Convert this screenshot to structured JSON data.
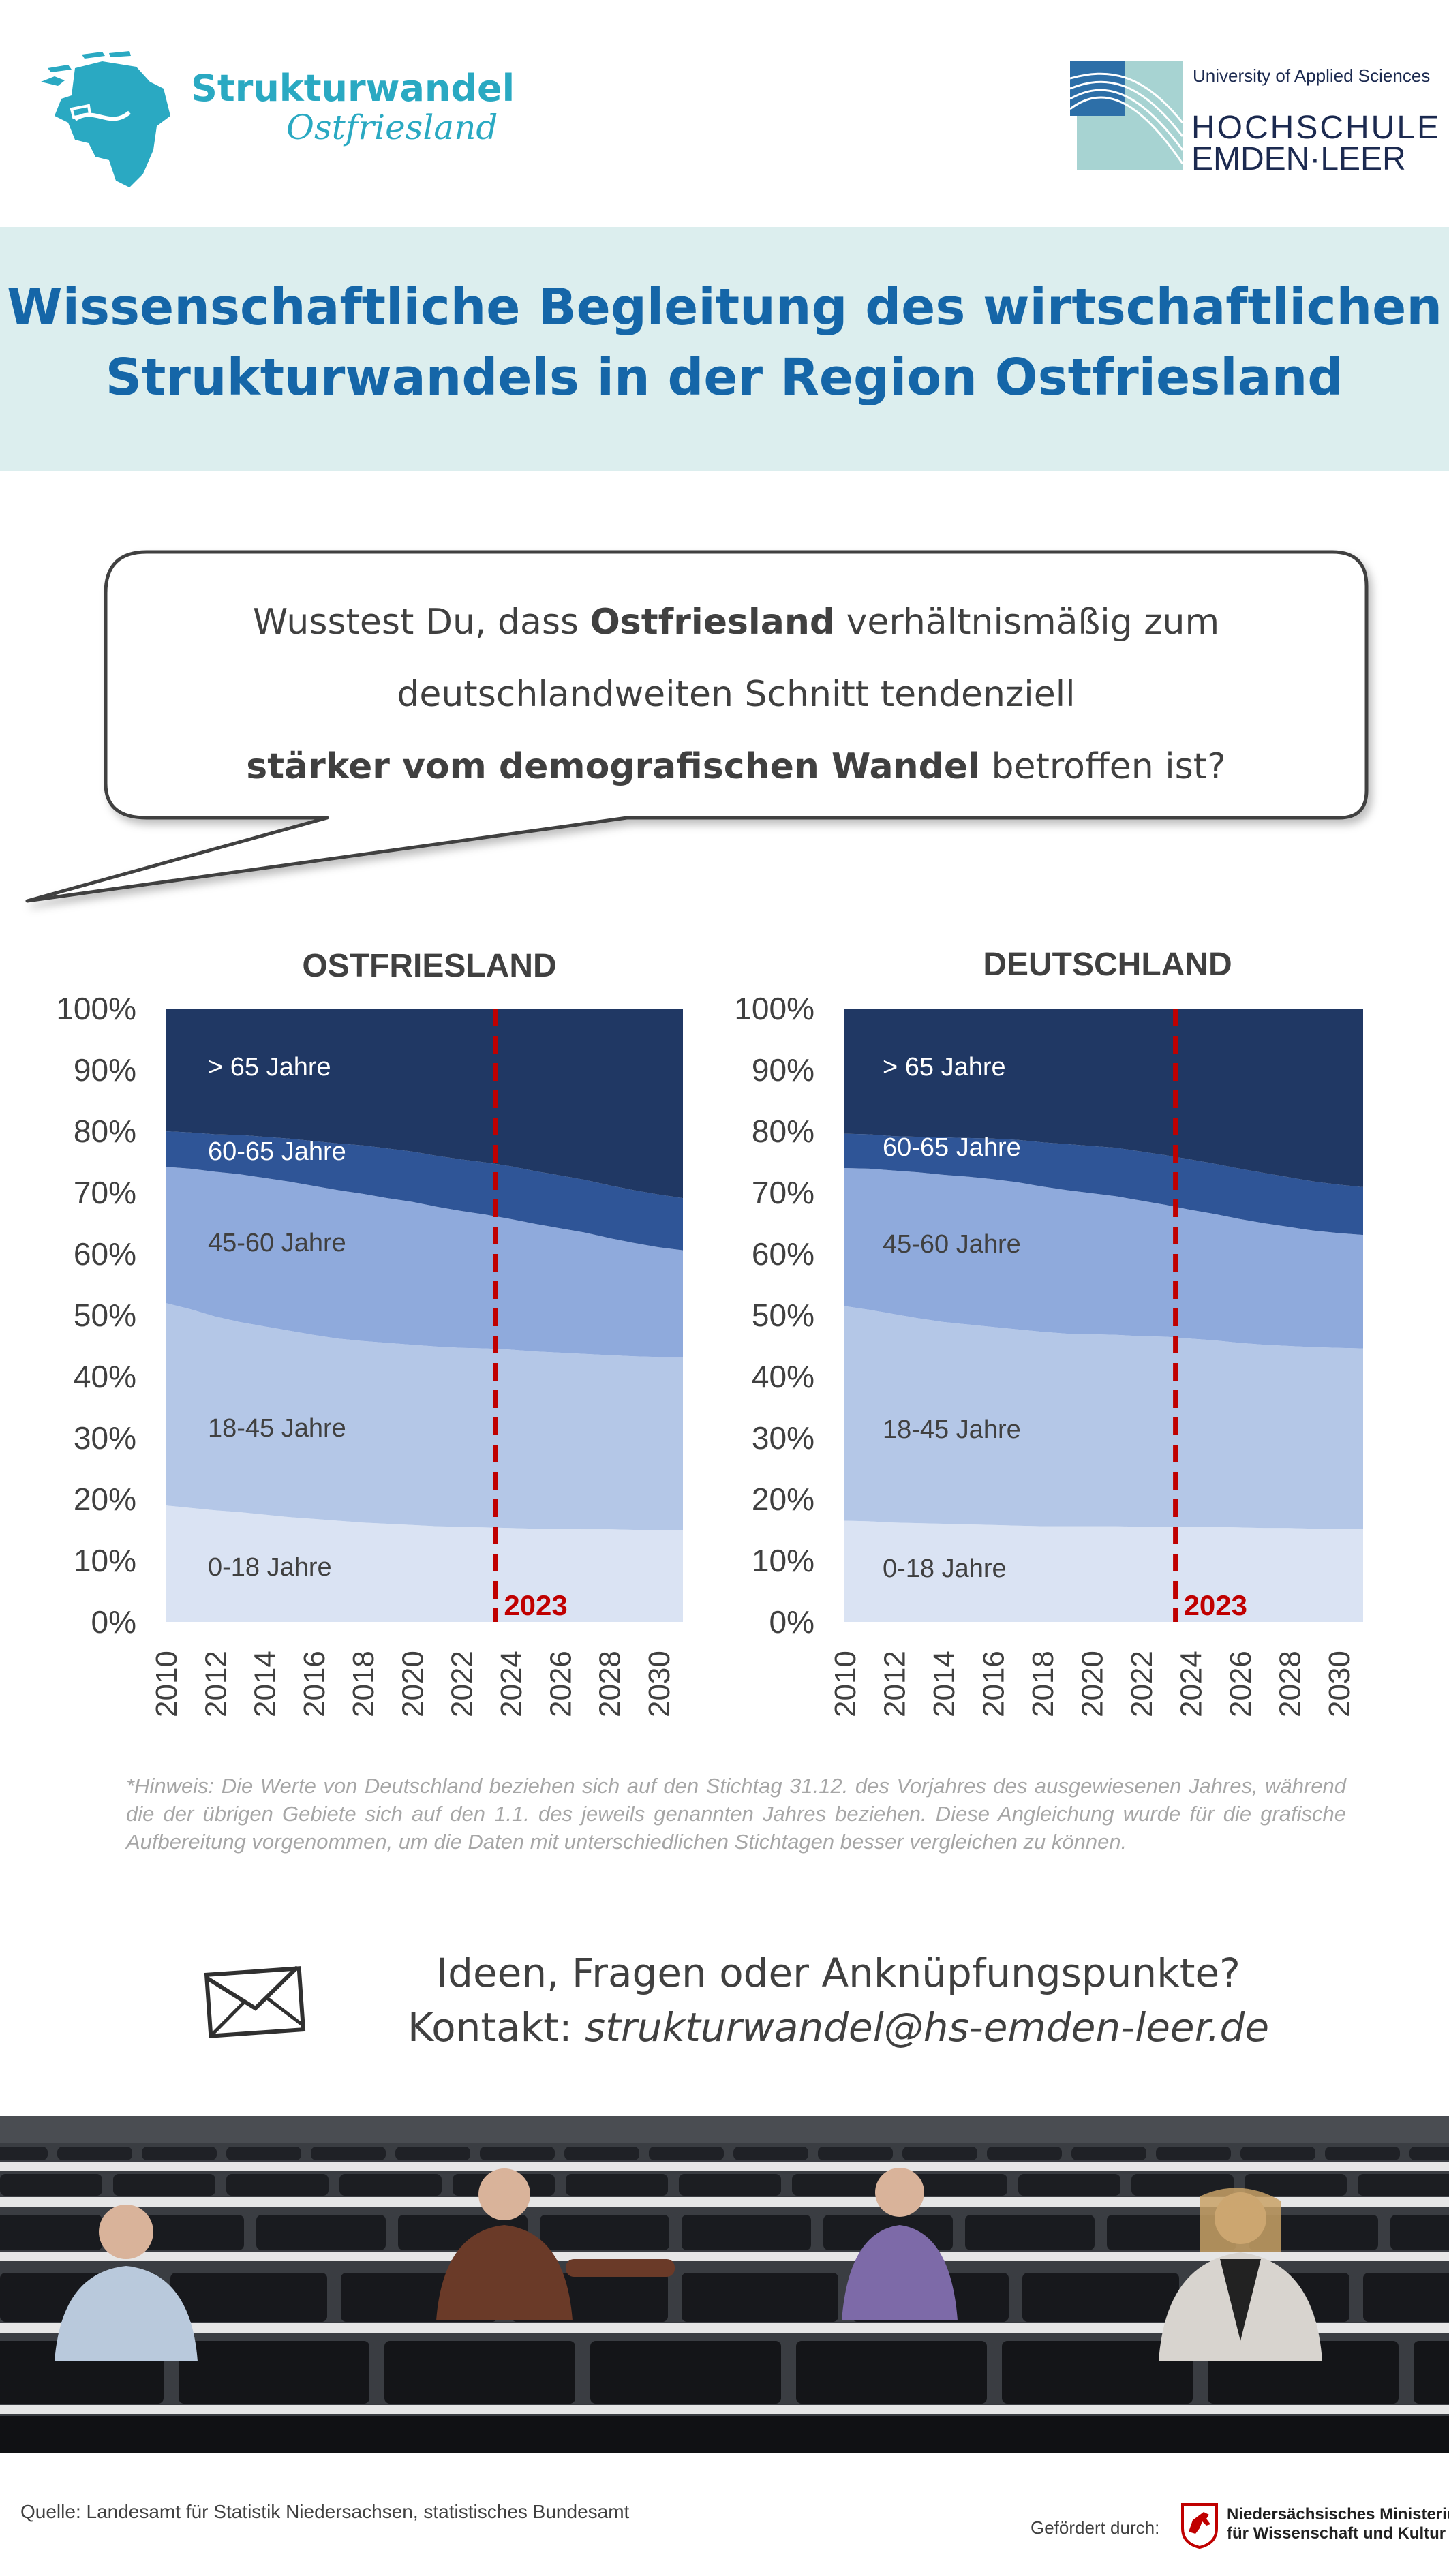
{
  "header": {
    "logo_left": {
      "line1": "Strukturwandel",
      "line2": "Ostfriesland",
      "icon": "ostfriesland-map-icon",
      "color": "#2aa9c2"
    },
    "logo_right": {
      "tagline": "University of Applied Sciences",
      "line1": "HOCHSCHULE",
      "line2": "EMDEN·LEER",
      "icon": "hochschule-wave-logo-icon"
    }
  },
  "title": {
    "line1": "Wissenschaftliche Begleitung des wirtschaftlichen",
    "line2": "Strukturwandels in der Region Ostfriesland",
    "color": "#1566a8",
    "band_color": "#dceeee"
  },
  "bubble": {
    "line1_pre": "Wusstest Du, dass ",
    "line1_bold": "Ostfriesland",
    "line1_post": " verhältnismäßig zum",
    "line2": "deutschlandweiten Schnitt tendenziell",
    "line3_bold": "stärker vom demografischen Wandel",
    "line3_post": " betroffen ist?"
  },
  "chart_data": [
    {
      "type": "area",
      "stacked": true,
      "title": "OSTFRIESLAND",
      "x": [
        2010,
        2011,
        2012,
        2013,
        2014,
        2015,
        2016,
        2017,
        2018,
        2019,
        2020,
        2021,
        2022,
        2023,
        2024,
        2025,
        2026,
        2027,
        2028,
        2029,
        2030,
        2031
      ],
      "x_tick_labels": [
        "2010",
        "2012",
        "2014",
        "2016",
        "2018",
        "2020",
        "2022",
        "2024",
        "2026",
        "2028",
        "2030"
      ],
      "y_tick_labels": [
        "0%",
        "10%",
        "20%",
        "30%",
        "40%",
        "50%",
        "60%",
        "70%",
        "80%",
        "90%",
        "100%"
      ],
      "ylim": [
        0,
        100
      ],
      "series": [
        {
          "name": "0-18 Jahre",
          "color": "#dae3f3",
          "values": [
            19,
            18.6,
            18.2,
            17.9,
            17.5,
            17.1,
            16.8,
            16.5,
            16.2,
            16,
            15.8,
            15.6,
            15.5,
            15.4,
            15.3,
            15.2,
            15.2,
            15.1,
            15.1,
            15,
            15,
            15
          ]
        },
        {
          "name": "18-45 Jahre",
          "color": "#b4c7e7",
          "values": [
            33,
            32.4,
            31.6,
            31,
            30.7,
            30.4,
            30,
            29.7,
            29.6,
            29.5,
            29.4,
            29.3,
            29.2,
            29.2,
            29.1,
            28.9,
            28.7,
            28.6,
            28.4,
            28.3,
            28.2,
            28.2
          ]
        },
        {
          "name": "45-60 Jahre",
          "color": "#8faadc",
          "values": [
            22.2,
            22.9,
            23.6,
            24.1,
            24.2,
            24.3,
            24.3,
            24.2,
            24,
            23.6,
            23.3,
            22.8,
            22.3,
            21.8,
            21.3,
            20.8,
            20.3,
            19.8,
            19.1,
            18.5,
            17.9,
            17.4
          ]
        },
        {
          "name": "60-65 Jahre",
          "color": "#2f5597",
          "values": [
            5.8,
            5.9,
            6.1,
            6.4,
            6.7,
            7,
            7.3,
            7.6,
            7.9,
            8.1,
            8.2,
            8.3,
            8.4,
            8.5,
            8.6,
            8.6,
            8.6,
            8.6,
            8.6,
            8.6,
            8.6,
            8.5
          ]
        },
        {
          "name": "> 65 Jahre",
          "color": "#203864",
          "values": [
            20,
            20.2,
            20.5,
            20.6,
            20.9,
            21.2,
            21.6,
            22,
            22.3,
            22.8,
            23.3,
            24,
            24.6,
            25.1,
            25.7,
            26.5,
            27.2,
            27.9,
            28.8,
            29.6,
            30.3,
            30.9
          ]
        }
      ],
      "annotation": {
        "label": "2023",
        "x": 2023.4,
        "color": "#c00000"
      }
    },
    {
      "type": "area",
      "stacked": true,
      "title": "DEUTSCHLAND",
      "x": [
        2010,
        2011,
        2012,
        2013,
        2014,
        2015,
        2016,
        2017,
        2018,
        2019,
        2020,
        2021,
        2022,
        2023,
        2024,
        2025,
        2026,
        2027,
        2028,
        2029,
        2030,
        2031
      ],
      "x_tick_labels": [
        "2010",
        "2012",
        "2014",
        "2016",
        "2018",
        "2020",
        "2022",
        "2024",
        "2026",
        "2028",
        "2030"
      ],
      "y_tick_labels": [
        "0%",
        "10%",
        "20%",
        "30%",
        "40%",
        "50%",
        "60%",
        "70%",
        "80%",
        "90%",
        "100%"
      ],
      "ylim": [
        0,
        100
      ],
      "series": [
        {
          "name": "0-18 Jahre",
          "color": "#dae3f3",
          "values": [
            16.5,
            16.4,
            16.2,
            16.1,
            16,
            15.9,
            15.8,
            15.7,
            15.6,
            15.6,
            15.6,
            15.6,
            15.5,
            15.5,
            15.5,
            15.5,
            15.4,
            15.3,
            15.3,
            15.2,
            15.2,
            15.2
          ]
        },
        {
          "name": "18-45 Jahre",
          "color": "#b4c7e7",
          "values": [
            35,
            34.5,
            34,
            33.4,
            32.9,
            32.6,
            32.3,
            32,
            31.7,
            31.4,
            31.3,
            31.2,
            31.1,
            31,
            30.7,
            30.4,
            30.1,
            29.9,
            29.7,
            29.6,
            29.5,
            29.4
          ]
        },
        {
          "name": "45-60 Jahre",
          "color": "#8faadc",
          "values": [
            22.5,
            23,
            23.4,
            23.8,
            24,
            24.1,
            24.1,
            24,
            23.7,
            23.4,
            23,
            22.6,
            22.1,
            21.5,
            21,
            20.6,
            20.2,
            19.8,
            19.4,
            19,
            18.7,
            18.5
          ]
        },
        {
          "name": "60-65 Jahre",
          "color": "#2f5597",
          "values": [
            5.6,
            5.6,
            5.6,
            5.8,
            6.1,
            6.3,
            6.6,
            6.9,
            7.2,
            7.5,
            7.7,
            7.9,
            8,
            8.1,
            8.2,
            8.2,
            8.2,
            8.2,
            8.1,
            8,
            7.9,
            7.8
          ]
        },
        {
          "name": "> 65 Jahre",
          "color": "#203864",
          "values": [
            20.4,
            20.5,
            20.8,
            20.9,
            21,
            21.1,
            21.2,
            21.4,
            21.8,
            22.1,
            22.4,
            22.7,
            23.3,
            23.9,
            24.6,
            25.3,
            26.1,
            26.8,
            27.5,
            28.2,
            28.7,
            29.1
          ]
        }
      ],
      "annotation": {
        "label": "2023",
        "x": 2023.4,
        "color": "#c00000"
      }
    }
  ],
  "footnote": "*Hinweis: Die Werte von Deutschland  beziehen sich auf den Stichtag 31.12. des Vorjahres des ausgewiesenen Jahres, während die der übrigen Gebiete sich auf den 1.1. des jeweils genannten Jahres beziehen. Diese Angleichung wurde für die grafische Aufbereitung vorgenommen, um die Daten mit unterschiedlichen Stichtagen besser vergleichen zu können.",
  "contact": {
    "line1": "Ideen, Fragen oder Anknüpfungspunkte?",
    "line2_pre": "Kontakt: ",
    "email": "strukturwandel@hs-emden-leer.de",
    "icon": "envelope-icon"
  },
  "photo": {
    "icon": "lecture-hall-team-photo"
  },
  "footer": {
    "source": "Quelle: Landesamt für Statistik Niedersachsen, statistisches Bundesamt",
    "funded_by": "Gefördert durch:",
    "ministry_line1": "Niedersächsisches Ministerium",
    "ministry_line2": "für Wissenschaft und Kultur",
    "ministry_icon": "niedersachsen-horse-crest-icon"
  }
}
